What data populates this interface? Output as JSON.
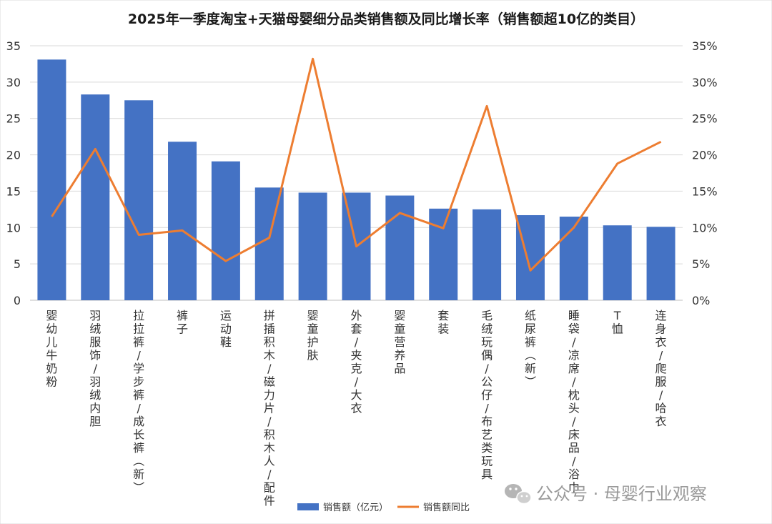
{
  "chart_data": {
    "type": "bar",
    "title": "2025年一季度淘宝+天猫母婴细分品类销售额及同比增长率（销售额超10亿的类目）",
    "categories": [
      "婴幼儿牛奶粉",
      "羽绒服饰/羽绒内胆",
      "拉拉裤/学步裤/成长裤（新）",
      "裤子",
      "运动鞋",
      "拼插积木/磁力片/积木人/配件",
      "婴童护肤",
      "外套/夹克/大衣",
      "婴童营养品",
      "套装",
      "毛绒玩偶/公仔/布艺类玩具",
      "纸尿裤（新）",
      "睡袋/凉席/枕头/床品/浴巾",
      "T恤",
      "连身衣/爬服/哈衣"
    ],
    "series": [
      {
        "name": "销售额（亿元）",
        "type": "bar",
        "axis": "left",
        "color": "#4472C4",
        "values": [
          33.1,
          28.3,
          27.5,
          21.8,
          19.1,
          15.5,
          14.8,
          14.8,
          14.4,
          12.6,
          12.5,
          11.7,
          11.5,
          10.3,
          10.1
        ]
      },
      {
        "name": "销售额同比",
        "type": "line",
        "axis": "right",
        "color": "#ED7D31",
        "values": [
          11.5,
          20.8,
          9.0,
          9.6,
          5.4,
          8.6,
          33.2,
          7.4,
          12.0,
          9.9,
          26.7,
          4.1,
          10.0,
          18.8,
          21.8
        ]
      }
    ],
    "y_left": {
      "ylim": [
        0,
        35
      ],
      "ticks": [
        "0",
        "5",
        "10",
        "15",
        "20",
        "25",
        "30",
        "35"
      ]
    },
    "y_right": {
      "ylim": [
        0,
        35
      ],
      "unit": "%",
      "ticks": [
        "0%",
        "5%",
        "10%",
        "15%",
        "20%",
        "25%",
        "30%",
        "35%"
      ]
    },
    "grid": true,
    "legend_position": "bottom"
  },
  "watermark": {
    "text": "公众号 · 母婴行业观察",
    "icon": "wechat-icon"
  }
}
